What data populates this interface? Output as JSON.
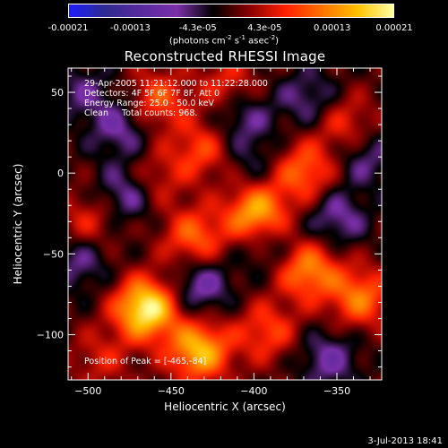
{
  "colorbar": {
    "ticks": [
      "-0.00021",
      "-0.00013",
      "-4.3e-05",
      "4.3e-05",
      "0.00013",
      "0.00021"
    ],
    "tick_values": [
      -0.00021,
      -0.00013,
      -4.3e-05,
      4.3e-05,
      0.00013,
      0.00021
    ],
    "range": [
      -0.00021,
      0.00021
    ],
    "label_main": "(photons cm",
    "label_sup1": "-2",
    "label_mid": " s",
    "label_sup2": "-1",
    "label_end": " asec",
    "label_sup3": "-2",
    "label_close": ")"
  },
  "chart_data": {
    "type": "heatmap",
    "title": "Reconstructed RHESSI Image",
    "xlabel": "Heliocentric X (arcsec)",
    "ylabel": "Heliocentric Y (arcsec)",
    "xlim": [
      -512,
      -323
    ],
    "ylim": [
      -128,
      65
    ],
    "x_ticks": [
      -500,
      -450,
      -400,
      -350
    ],
    "y_ticks": [
      50,
      0,
      -50,
      -100
    ],
    "x_tick_labels": [
      "−500",
      "−450",
      "−400",
      "−350"
    ],
    "y_tick_labels": [
      "50",
      "0",
      "−50",
      "−100"
    ],
    "colormap": [
      "#1e1eff",
      "#2e2a8e",
      "#5a2a9e",
      "#7a2fa8",
      "#000000",
      "#8a0000",
      "#ff2000",
      "#ff7000",
      "#ffc000",
      "#ffffa0"
    ],
    "sources": [
      {
        "x": -465,
        "y": -84,
        "value": 1.0
      },
      {
        "x": -433,
        "y": -110,
        "value": 0.78
      },
      {
        "x": -398,
        "y": -26,
        "value": 0.82
      },
      {
        "x": -367,
        "y": -60,
        "value": 0.62
      },
      {
        "x": -336,
        "y": -77,
        "value": 0.55
      },
      {
        "x": -370,
        "y": 1,
        "value": 0.52
      },
      {
        "x": -436,
        "y": -40,
        "value": 0.5
      },
      {
        "x": -458,
        "y": 45,
        "value": 0.45
      },
      {
        "x": -432,
        "y": 14,
        "value": 0.4
      },
      {
        "x": -462,
        "y": -5,
        "value": 0.35
      },
      {
        "x": -500,
        "y": -30,
        "value": 0.3
      },
      {
        "x": -415,
        "y": 53,
        "value": 0.38
      },
      {
        "x": -345,
        "y": 30,
        "value": 0.35
      },
      {
        "x": -392,
        "y": -98,
        "value": 0.4
      },
      {
        "x": -492,
        "y": -115,
        "value": 0.25
      },
      {
        "x": -480,
        "y": 28,
        "value": -0.35
      },
      {
        "x": -475,
        "y": -12,
        "value": -0.45
      },
      {
        "x": -408,
        "y": 37,
        "value": -0.35
      },
      {
        "x": -505,
        "y": -55,
        "value": -0.3
      },
      {
        "x": -393,
        "y": -42,
        "value": -0.3
      },
      {
        "x": -432,
        "y": -70,
        "value": -0.4
      },
      {
        "x": -350,
        "y": -28,
        "value": -0.35
      },
      {
        "x": -355,
        "y": -115,
        "value": -0.35
      },
      {
        "x": -367,
        "y": 46,
        "value": -0.3
      },
      {
        "x": -503,
        "y": 50,
        "value": -0.25
      },
      {
        "x": -400,
        "y": 8,
        "value": -0.2
      },
      {
        "x": -333,
        "y": 10,
        "value": -0.3
      }
    ]
  },
  "annotations": {
    "line1": "29-Apr-2005 11:21:12.000 to 11:22:28.000",
    "line2": "Detectors: 4F 5F 6F 7F 8F, Att 0",
    "line3": "Energy Range: 25.0 - 50.0 keV",
    "line4": "Clean     Total counts: 968.",
    "peak": "Position of Peak = [-465,-84]"
  },
  "footer": {
    "date": "3-Jul-2013 18:41"
  }
}
